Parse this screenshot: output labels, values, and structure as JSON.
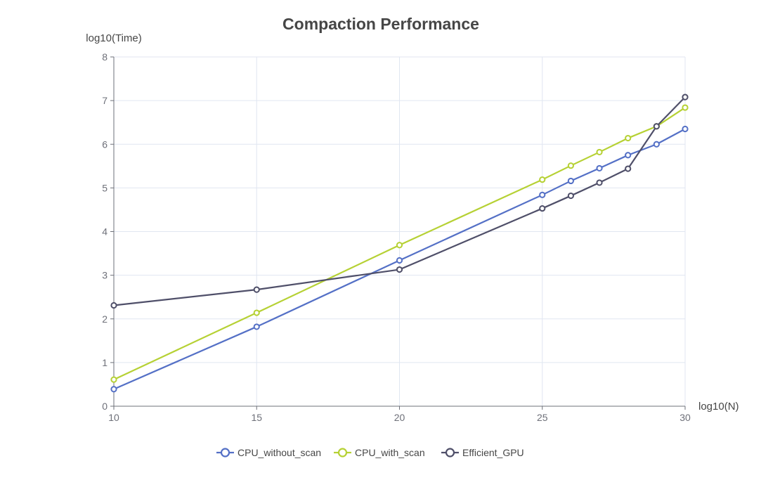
{
  "chart_data": {
    "type": "line",
    "title": "Compaction Performance",
    "xlabel": "log10(N)",
    "ylabel": "log10(Time)",
    "xlim": [
      10,
      30
    ],
    "ylim": [
      0,
      8
    ],
    "xticks": [
      10,
      15,
      20,
      25,
      30
    ],
    "yticks": [
      0,
      1,
      2,
      3,
      4,
      5,
      6,
      7,
      8
    ],
    "grid": true,
    "legend_position": "bottom-center",
    "series": [
      {
        "name": "CPU_without_scan",
        "color": "#5470c6",
        "points": [
          [
            10,
            0.39
          ],
          [
            15,
            1.82
          ],
          [
            20,
            3.34
          ],
          [
            25,
            4.84
          ],
          [
            26,
            5.16
          ],
          [
            27,
            5.45
          ],
          [
            28,
            5.75
          ],
          [
            29,
            6.0
          ],
          [
            30,
            6.35
          ]
        ]
      },
      {
        "name": "CPU_with_scan",
        "color": "#b6d134",
        "points": [
          [
            10,
            0.61
          ],
          [
            15,
            2.14
          ],
          [
            20,
            3.69
          ],
          [
            25,
            5.19
          ],
          [
            26,
            5.51
          ],
          [
            27,
            5.82
          ],
          [
            28,
            6.14
          ],
          [
            29,
            6.41
          ],
          [
            30,
            6.84
          ]
        ]
      },
      {
        "name": "Efficient_GPU",
        "color": "#4f4f69",
        "points": [
          [
            10,
            2.31
          ],
          [
            15,
            2.67
          ],
          [
            20,
            3.13
          ],
          [
            25,
            4.53
          ],
          [
            26,
            4.82
          ],
          [
            27,
            5.12
          ],
          [
            28,
            5.44
          ],
          [
            29,
            6.41
          ],
          [
            30,
            7.08
          ]
        ]
      }
    ]
  }
}
